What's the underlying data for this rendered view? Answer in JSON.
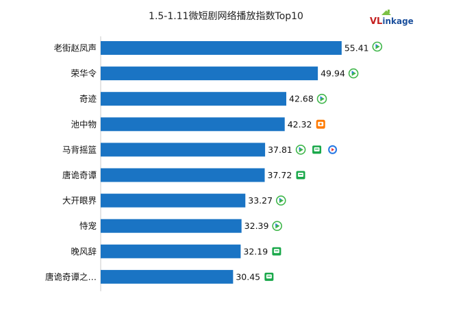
{
  "brand": {
    "logo_text_v": "VL",
    "logo_text_rest": "inkage"
  },
  "colors": {
    "bar": "#1a74c4",
    "iqiyi": "#3fb64a",
    "wechat_green": "#1aa84a",
    "youku": "#ff7a00",
    "youku_blue": "#2a7be4"
  },
  "chart_data": {
    "type": "bar",
    "orientation": "horizontal",
    "title": "1.5-1.11微短剧网络播放指数Top10",
    "xlabel": "",
    "ylabel": "",
    "categories": [
      "老街赵凤声",
      "荣华令",
      "奇迹",
      "池中物",
      "马背摇篮",
      "唐诡奇谭",
      "大开眼界",
      "恃宠",
      "晚风辞",
      "唐诡奇谭之…"
    ],
    "values": [
      55.41,
      49.94,
      42.68,
      42.32,
      37.81,
      37.72,
      33.27,
      32.39,
      32.19,
      30.45
    ],
    "value_labels": [
      "55.41",
      "49.94",
      "42.68",
      "42.32",
      "37.81",
      "37.72",
      "33.27",
      "32.39",
      "32.19",
      "30.45"
    ],
    "platform_icons": [
      [
        "iqiyi-play"
      ],
      [
        "iqiyi-play"
      ],
      [
        "iqiyi-play"
      ],
      [
        "orange-tv"
      ],
      [
        "iqiyi-play",
        "green-chat",
        "blue-play"
      ],
      [
        "green-chat"
      ],
      [
        "iqiyi-play"
      ],
      [
        "iqiyi-play"
      ],
      [
        "green-chat"
      ],
      [
        "green-chat"
      ]
    ],
    "xlim": [
      0,
      60
    ],
    "grid": false,
    "legend": "none"
  }
}
